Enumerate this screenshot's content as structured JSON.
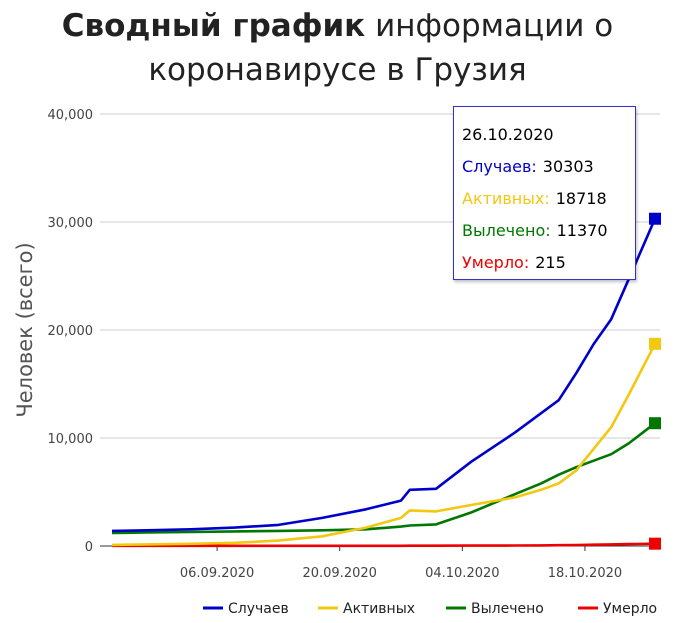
{
  "header": {
    "title_bold": "Сводный график",
    "title_rest_line1": " информации о",
    "title_line2": "коронавирусе в Грузия"
  },
  "tooltip": {
    "date": "26.10.2020",
    "rows": [
      {
        "label": "Случаев:",
        "value": "30303",
        "color": "#0000cc"
      },
      {
        "label": "Активных:",
        "value": "18718",
        "color": "#f2c811"
      },
      {
        "label": "Вылечено:",
        "value": "11370",
        "color": "#007700"
      },
      {
        "label": "Умерло:",
        "value": "215",
        "color": "#ee0000"
      }
    ]
  },
  "chart_data": {
    "type": "line",
    "ylabel": "Человек (всего)",
    "xlabel": "",
    "ylim": [
      0,
      40000
    ],
    "yticks": [
      0,
      10000,
      20000,
      30000,
      40000
    ],
    "ytick_labels": [
      "0",
      "10,000",
      "20,000",
      "30,000",
      "40,000"
    ],
    "xlim": [
      "2020-08-25",
      "2020-10-26"
    ],
    "xticks": [
      "2020-09-06",
      "2020-09-20",
      "2020-10-04",
      "2020-10-18"
    ],
    "xtick_labels": [
      "06.09.2020",
      "20.09.2020",
      "04.10.2020",
      "18.10.2020"
    ],
    "grid": "horizontal",
    "legend_position": "bottom-right",
    "x": [
      "2020-08-25",
      "2020-08-29",
      "2020-09-03",
      "2020-09-08",
      "2020-09-13",
      "2020-09-18",
      "2020-09-23",
      "2020-09-27",
      "2020-09-28",
      "2020-10-01",
      "2020-10-05",
      "2020-10-10",
      "2020-10-13",
      "2020-10-15",
      "2020-10-17",
      "2020-10-19",
      "2020-10-21",
      "2020-10-23",
      "2020-10-26"
    ],
    "series": [
      {
        "name": "Случаев",
        "color": "#0000cc",
        "values": [
          1400,
          1450,
          1550,
          1700,
          1950,
          2600,
          3400,
          4200,
          5200,
          5300,
          7800,
          10500,
          12300,
          13500,
          16000,
          18700,
          21000,
          24700,
          30303
        ]
      },
      {
        "name": "Активных",
        "color": "#f2c811",
        "values": [
          100,
          150,
          200,
          300,
          500,
          900,
          1700,
          2600,
          3300,
          3200,
          3800,
          4500,
          5200,
          5800,
          7000,
          9000,
          11000,
          14000,
          18718
        ]
      },
      {
        "name": "Вылечено",
        "color": "#007700",
        "values": [
          1200,
          1250,
          1300,
          1350,
          1400,
          1450,
          1550,
          1800,
          1900,
          2000,
          3100,
          4800,
          5800,
          6600,
          7300,
          7900,
          8500,
          9500,
          11370
        ]
      },
      {
        "name": "Умерло",
        "color": "#ee0000",
        "values": [
          17,
          17,
          17,
          17,
          17,
          19,
          20,
          22,
          25,
          30,
          40,
          50,
          60,
          70,
          90,
          120,
          150,
          180,
          215
        ]
      }
    ]
  }
}
